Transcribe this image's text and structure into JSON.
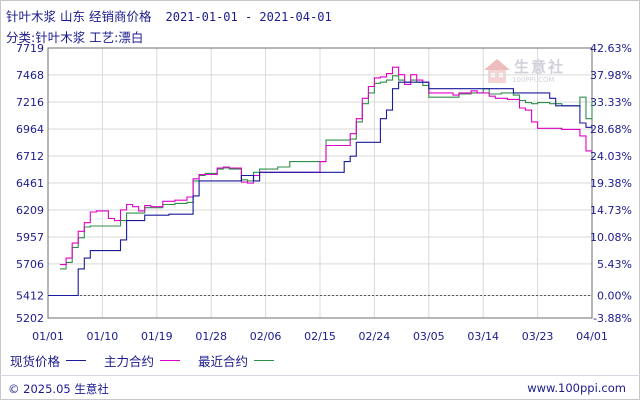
{
  "header": {
    "product": "针叶木浆",
    "region": "山东",
    "price_type": "经销商价格",
    "date_range": "2021-01-01 - 2021-04-01",
    "category_line": "分类:针叶木浆 工艺:漂白"
  },
  "watermark": {
    "name": "生意社",
    "url": "100PPI.COM"
  },
  "legend": {
    "spot_label": "现货价格",
    "main_label": "主力合约",
    "latest_label": "最近合约"
  },
  "footer": {
    "copyright": "© 2025.05 生意社",
    "site": "www.100ppi.com"
  },
  "chart_data": {
    "type": "line",
    "y_ticks_left": [
      "7719",
      "7468",
      "7216",
      "6964",
      "6712",
      "6461",
      "6209",
      "5957",
      "5706",
      "5412",
      "5202"
    ],
    "y_ticks_right": [
      "42.63%",
      "37.98%",
      "33.33%",
      "28.68%",
      "24.03%",
      "19.38%",
      "14.73%",
      "10.08%",
      "5.43%",
      "0.00%",
      "-3.88%"
    ],
    "x_ticks": [
      "01/01",
      "01/10",
      "01/19",
      "01/28",
      "02/06",
      "02/15",
      "02/24",
      "03/05",
      "03/14",
      "03/23",
      "04/01"
    ],
    "ylim": [
      5202,
      7719
    ],
    "grid": true,
    "colors": {
      "spot": "#1a1a9c",
      "main": "#e000c8",
      "latest": "#2f8f4a",
      "grid": "#d9d9d9",
      "axis": "#6d6d6d",
      "tick": "#1b1b8f",
      "zero_line": "#5a5a5a"
    },
    "series": [
      {
        "name": "现货价格",
        "x": [
          "01-01",
          "01-02",
          "01-03",
          "01-04",
          "01-05",
          "01-06",
          "01-07",
          "01-08",
          "01-09",
          "01-10",
          "01-11",
          "01-12",
          "01-13",
          "01-14",
          "01-15",
          "01-16",
          "01-17",
          "01-18",
          "01-19",
          "01-20",
          "01-21",
          "01-22",
          "01-23",
          "01-24",
          "01-25",
          "01-26",
          "01-27",
          "01-28",
          "01-29",
          "01-30",
          "01-31",
          "02-01",
          "02-02",
          "02-03",
          "02-04",
          "02-05",
          "02-06",
          "02-07",
          "02-08",
          "02-09",
          "02-10",
          "02-11",
          "02-12",
          "02-13",
          "02-14",
          "02-15",
          "02-16",
          "02-17",
          "02-18",
          "02-19",
          "02-20",
          "02-21",
          "02-22",
          "02-23",
          "02-24",
          "02-25",
          "02-26",
          "02-27",
          "02-28",
          "03-01",
          "03-02",
          "03-03",
          "03-04",
          "03-05",
          "03-06",
          "03-07",
          "03-08",
          "03-09",
          "03-10",
          "03-11",
          "03-12",
          "03-13",
          "03-14",
          "03-15",
          "03-16",
          "03-17",
          "03-18",
          "03-19",
          "03-20",
          "03-21",
          "03-22",
          "03-23",
          "03-24",
          "03-25",
          "03-26",
          "03-27",
          "03-28",
          "03-29",
          "03-30",
          "03-31",
          "04-01"
        ],
        "values": [
          5412,
          5412,
          5412,
          5412,
          5412,
          5660,
          5760,
          5830,
          5830,
          5830,
          5830,
          5830,
          5930,
          6110,
          6110,
          6110,
          6160,
          6160,
          6160,
          6160,
          6170,
          6170,
          6170,
          6170,
          6340,
          6480,
          6480,
          6480,
          6480,
          6480,
          6480,
          6480,
          6530,
          6530,
          6480,
          6560,
          6560,
          6560,
          6560,
          6560,
          6560,
          6560,
          6560,
          6560,
          6560,
          6560,
          6560,
          6560,
          6560,
          6660,
          6710,
          6840,
          6840,
          6840,
          6840,
          7060,
          7140,
          7340,
          7400,
          7400,
          7400,
          7400,
          7400,
          7340,
          7340,
          7340,
          7340,
          7340,
          7340,
          7340,
          7340,
          7340,
          7340,
          7340,
          7340,
          7340,
          7340,
          7300,
          7300,
          7300,
          7300,
          7300,
          7300,
          7250,
          7180,
          7180,
          7180,
          7180,
          7020,
          6980,
          6960
        ]
      },
      {
        "name": "主力合约",
        "x": [
          "01-03",
          "01-04",
          "01-05",
          "01-06",
          "01-07",
          "01-08",
          "01-09",
          "01-10",
          "01-11",
          "01-12",
          "01-13",
          "01-14",
          "01-15",
          "01-16",
          "01-17",
          "01-18",
          "01-19",
          "01-20",
          "01-21",
          "01-22",
          "01-23",
          "01-24",
          "01-25",
          "01-26",
          "01-27",
          "01-28",
          "01-29",
          "01-30",
          "01-31",
          "02-01",
          "02-02",
          "02-03",
          "02-04",
          "02-05",
          "02-06",
          "02-07",
          "02-08",
          "02-09",
          "02-10",
          "02-11",
          "02-12",
          "02-13",
          "02-14",
          "02-15",
          "02-16",
          "02-17",
          "02-18",
          "02-19",
          "02-20",
          "02-21",
          "02-22",
          "02-23",
          "02-24",
          "02-25",
          "02-26",
          "02-27",
          "02-28",
          "03-01",
          "03-02",
          "03-03",
          "03-04",
          "03-05",
          "03-06",
          "03-07",
          "03-08",
          "03-09",
          "03-10",
          "03-11",
          "03-12",
          "03-13",
          "03-14",
          "03-15",
          "03-16",
          "03-17",
          "03-18",
          "03-19",
          "03-20",
          "03-21",
          "03-22",
          "03-23",
          "03-24",
          "03-25",
          "03-26",
          "03-27",
          "03-28",
          "03-29",
          "03-30",
          "03-31",
          "04-01"
        ],
        "values": [
          5700,
          5760,
          5900,
          6010,
          6090,
          6190,
          6200,
          6200,
          6130,
          6110,
          6210,
          6260,
          6240,
          6200,
          6250,
          6240,
          6240,
          6290,
          6290,
          6300,
          6300,
          6330,
          6500,
          6540,
          6540,
          6540,
          6600,
          6610,
          6600,
          6600,
          6470,
          6460,
          6530,
          6560,
          6560,
          6560,
          6560,
          6560,
          6560,
          6560,
          6560,
          6560,
          6560,
          6660,
          6810,
          6810,
          6810,
          6810,
          6920,
          7060,
          7250,
          7360,
          7440,
          7450,
          7480,
          7540,
          7470,
          7380,
          7470,
          7420,
          7400,
          7300,
          7300,
          7300,
          7300,
          7280,
          7300,
          7300,
          7320,
          7300,
          7300,
          7270,
          7250,
          7250,
          7240,
          7240,
          7160,
          7140,
          7030,
          6970,
          6970,
          6970,
          6970,
          6960,
          6960,
          6960,
          6900,
          6760,
          6760
        ]
      },
      {
        "name": "最近合约",
        "x": [
          "01-03",
          "01-04",
          "01-05",
          "01-06",
          "01-07",
          "01-08",
          "01-09",
          "01-10",
          "01-11",
          "01-12",
          "01-13",
          "01-14",
          "01-15",
          "01-16",
          "01-17",
          "01-18",
          "01-19",
          "01-20",
          "01-21",
          "01-22",
          "01-23",
          "01-24",
          "01-25",
          "01-26",
          "01-27",
          "01-28",
          "01-29",
          "01-30",
          "01-31",
          "02-01",
          "02-02",
          "02-03",
          "02-04",
          "02-05",
          "02-06",
          "02-07",
          "02-08",
          "02-09",
          "02-10",
          "02-11",
          "02-12",
          "02-13",
          "02-14",
          "02-15",
          "02-16",
          "02-17",
          "02-18",
          "02-19",
          "02-20",
          "02-21",
          "02-22",
          "02-23",
          "02-24",
          "02-25",
          "02-26",
          "02-27",
          "02-28",
          "03-01",
          "03-02",
          "03-03",
          "03-04",
          "03-05",
          "03-06",
          "03-07",
          "03-08",
          "03-09",
          "03-10",
          "03-11",
          "03-12",
          "03-13",
          "03-14",
          "03-15",
          "03-16",
          "03-17",
          "03-18",
          "03-19",
          "03-20",
          "03-21",
          "03-22",
          "03-23",
          "03-24",
          "03-25",
          "03-26",
          "03-27",
          "03-28",
          "03-29",
          "03-30",
          "03-31",
          "04-01"
        ],
        "values": [
          5660,
          5720,
          5860,
          5950,
          6050,
          6060,
          6060,
          6060,
          6060,
          6060,
          6110,
          6180,
          6180,
          6180,
          6230,
          6230,
          6230,
          6260,
          6260,
          6270,
          6270,
          6280,
          6480,
          6530,
          6550,
          6550,
          6590,
          6600,
          6590,
          6590,
          6490,
          6480,
          6560,
          6590,
          6590,
          6590,
          6610,
          6610,
          6660,
          6660,
          6660,
          6660,
          6660,
          6660,
          6860,
          6860,
          6860,
          6860,
          6870,
          7030,
          7200,
          7300,
          7390,
          7400,
          7420,
          7460,
          7420,
          7400,
          7420,
          7400,
          7370,
          7260,
          7260,
          7260,
          7260,
          7260,
          7290,
          7290,
          7300,
          7300,
          7340,
          7290,
          7290,
          7300,
          7300,
          7280,
          7230,
          7210,
          7200,
          7210,
          7210,
          7200,
          7200,
          7180,
          7180,
          7180,
          7260,
          7060,
          7220
        ]
      }
    ]
  }
}
